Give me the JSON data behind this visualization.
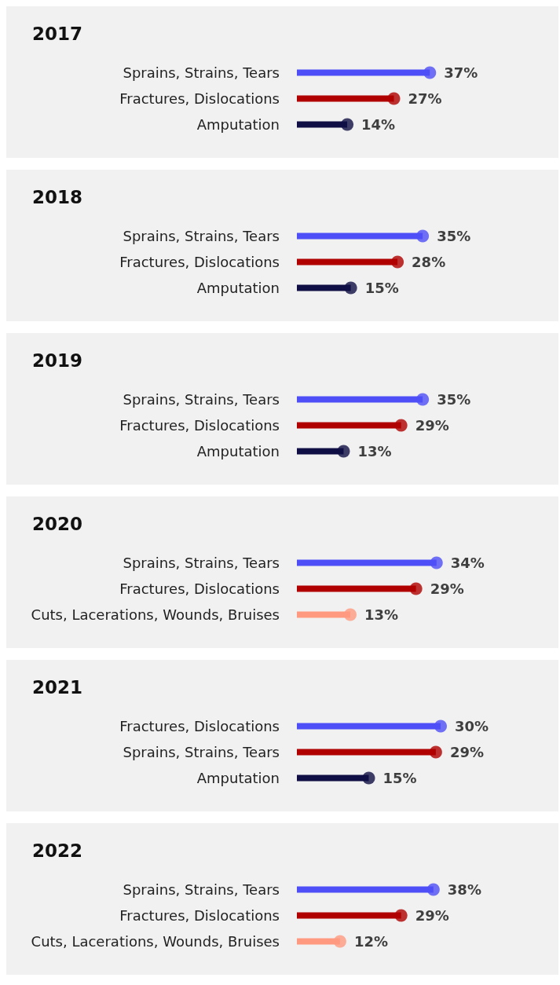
{
  "chart_data": [
    {
      "type": "lollipop",
      "orientation": "horizontal",
      "title": "2017",
      "categories": [
        "Sprains, Strains, Tears",
        "Fractures, Dislocations",
        "Amputation"
      ],
      "values": [
        37,
        27,
        14
      ],
      "colors": [
        "#4f4ff7",
        "#b00000",
        "#0f0f45"
      ],
      "value_labels": [
        "37%",
        "27%",
        "14%"
      ]
    },
    {
      "type": "lollipop",
      "orientation": "horizontal",
      "title": "2018",
      "categories": [
        "Sprains, Strains, Tears",
        "Fractures, Dislocations",
        "Amputation"
      ],
      "values": [
        35,
        28,
        15
      ],
      "colors": [
        "#4f4ff7",
        "#b00000",
        "#0f0f45"
      ],
      "value_labels": [
        "35%",
        "28%",
        "15%"
      ]
    },
    {
      "type": "lollipop",
      "orientation": "horizontal",
      "title": "2019",
      "categories": [
        "Sprains, Strains, Tears",
        "Fractures, Dislocations",
        "Amputation"
      ],
      "values": [
        35,
        29,
        13
      ],
      "colors": [
        "#4f4ff7",
        "#b00000",
        "#0f0f45"
      ],
      "value_labels": [
        "35%",
        "29%",
        "13%"
      ]
    },
    {
      "type": "lollipop",
      "orientation": "horizontal",
      "title": "2020",
      "categories": [
        "Sprains, Strains, Tears",
        "Fractures, Dislocations",
        "Cuts, Lacerations, Wounds, Bruises"
      ],
      "values": [
        34,
        29,
        13
      ],
      "colors": [
        "#4f4ff7",
        "#b00000",
        "#ff9a80"
      ],
      "value_labels": [
        "34%",
        "29%",
        "13%"
      ]
    },
    {
      "type": "lollipop",
      "orientation": "horizontal",
      "title": "2021",
      "categories": [
        "Fractures, Dislocations",
        "Sprains, Strains, Tears",
        "Amputation"
      ],
      "values": [
        30,
        29,
        15
      ],
      "colors": [
        "#4f4ff7",
        "#b00000",
        "#0f0f45"
      ],
      "value_labels": [
        "30%",
        "29%",
        "15%"
      ]
    },
    {
      "type": "lollipop",
      "orientation": "horizontal",
      "title": "2022",
      "categories": [
        "Sprains, Strains, Tears",
        "Fractures, Dislocations",
        "Cuts, Lacerations, Wounds, Bruises"
      ],
      "values": [
        38,
        29,
        12
      ],
      "colors": [
        "#4f4ff7",
        "#b00000",
        "#ff9a80"
      ],
      "value_labels": [
        "38%",
        "29%",
        "12%"
      ]
    }
  ]
}
